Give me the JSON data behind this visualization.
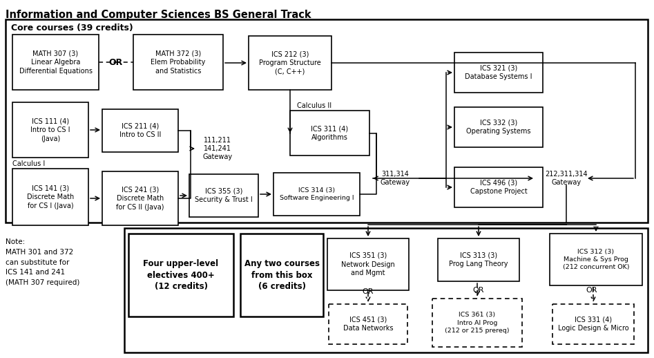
{
  "title": "Information and Computer Sciences BS General Track",
  "core_label": "Core courses (39 credits)",
  "note_text": "Note:\nMATH 301 and 372\ncan substitute for\nICS 141 and 241\n(MATH 307 required)"
}
